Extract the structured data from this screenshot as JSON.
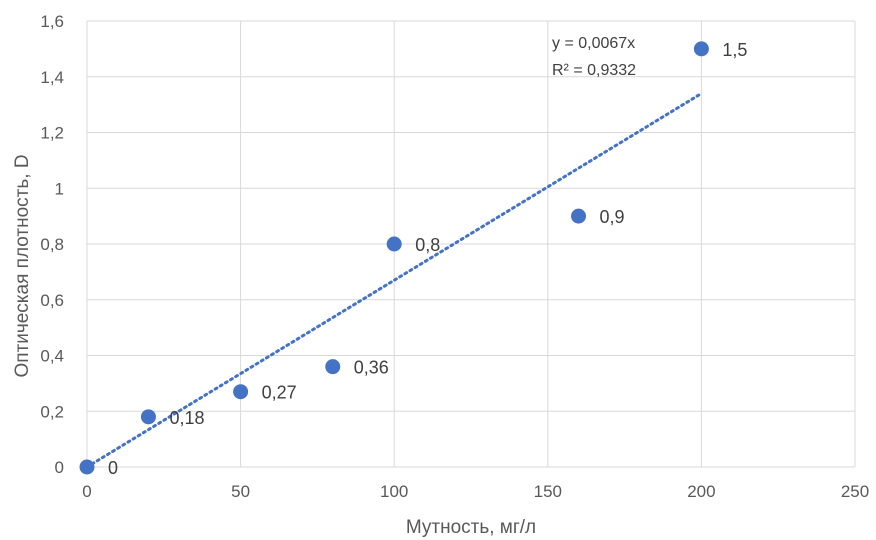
{
  "chart_data": {
    "type": "scatter",
    "title": "",
    "xlabel": "Мутность, мг/л",
    "ylabel": "Оптическая плотность, D",
    "xlim": [
      0,
      250
    ],
    "ylim": [
      0,
      1.6
    ],
    "x_ticks": [
      "0",
      "50",
      "100",
      "150",
      "200",
      "250"
    ],
    "y_ticks": [
      "0",
      "0,2",
      "0,4",
      "0,6",
      "0,8",
      "1",
      "1,2",
      "1,4",
      "1,6"
    ],
    "grid": true,
    "series": [
      {
        "color": "#4472c4",
        "points": [
          {
            "x": 0,
            "y": 0,
            "label": "0"
          },
          {
            "x": 20,
            "y": 0.18,
            "label": "0,18"
          },
          {
            "x": 50,
            "y": 0.27,
            "label": "0,27"
          },
          {
            "x": 80,
            "y": 0.36,
            "label": "0,36"
          },
          {
            "x": 100,
            "y": 0.8,
            "label": "0,8"
          },
          {
            "x": 160,
            "y": 0.9,
            "label": "0,9"
          },
          {
            "x": 200,
            "y": 1.5,
            "label": "1,5"
          }
        ]
      }
    ],
    "trendline": {
      "type": "linear",
      "slope": 0.0067,
      "intercept": 0,
      "x_range": [
        0,
        200
      ],
      "style": "dotted",
      "color": "#4472c4",
      "equation": "y = 0,0067x",
      "r_squared": "R² = 0,9332"
    }
  }
}
